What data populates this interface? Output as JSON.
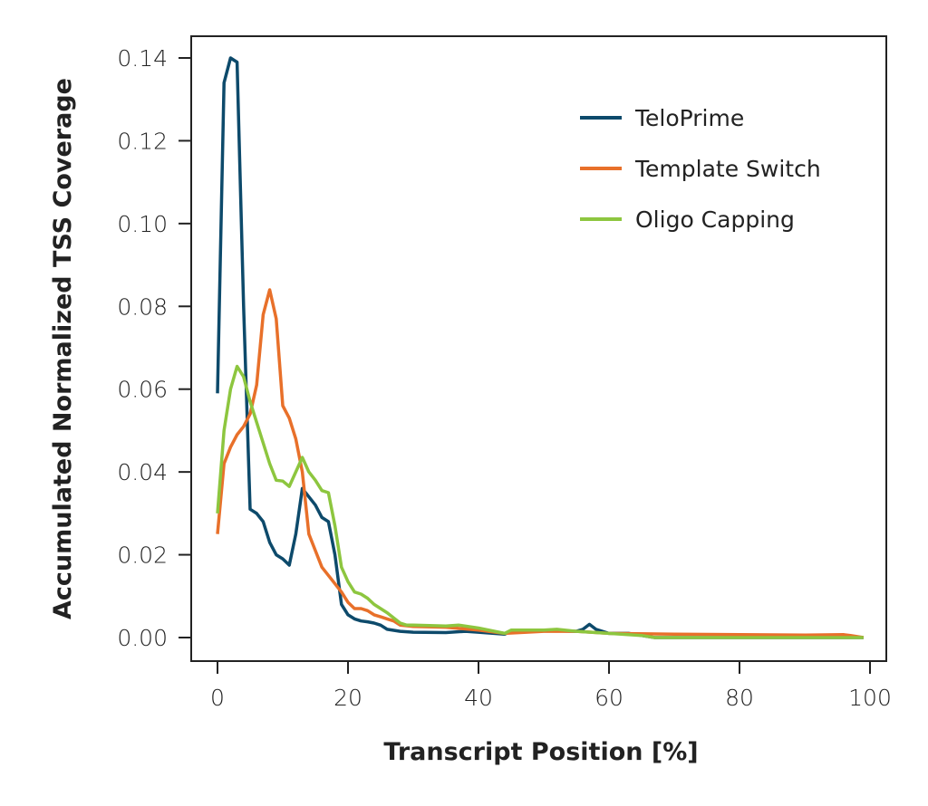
{
  "chart_data": {
    "type": "line",
    "title": "",
    "xlabel": "Transcript Position [%]",
    "ylabel": "Accumulated Normalized TSS Coverage",
    "xlim": [
      0,
      100
    ],
    "ylim": [
      0,
      0.14
    ],
    "xticks": [
      "0",
      "20",
      "40",
      "60",
      "80",
      "100"
    ],
    "yticks": [
      "0.00",
      "0.02",
      "0.04",
      "0.06",
      "0.08",
      "0.10",
      "0.12",
      "0.14"
    ],
    "grid": false,
    "legend_position": "top-right",
    "series": [
      {
        "name": "TeloPrime",
        "color": "#0d4a6b",
        "x": [
          0,
          1,
          2,
          3,
          4,
          5,
          6,
          7,
          8,
          9,
          10,
          11,
          12,
          13,
          14,
          15,
          16,
          17,
          18,
          19,
          20,
          21,
          22,
          23,
          24,
          25,
          26,
          28,
          30,
          35,
          38,
          40,
          44,
          45,
          50,
          55,
          56,
          57,
          58,
          60,
          63,
          67,
          99
        ],
        "y": [
          0.059,
          0.134,
          0.14,
          0.139,
          0.08,
          0.031,
          0.03,
          0.028,
          0.023,
          0.02,
          0.019,
          0.0175,
          0.025,
          0.036,
          0.034,
          0.032,
          0.029,
          0.028,
          0.02,
          0.008,
          0.0055,
          0.0045,
          0.004,
          0.0038,
          0.0035,
          0.003,
          0.002,
          0.0015,
          0.0013,
          0.0012,
          0.0015,
          0.0013,
          0.0008,
          0.0015,
          0.0017,
          0.0015,
          0.002,
          0.0032,
          0.002,
          0.001,
          0.001,
          0.0,
          0.0
        ]
      },
      {
        "name": "Template Switch",
        "color": "#e8702a",
        "x": [
          0,
          1,
          2,
          3,
          4,
          5,
          6,
          7,
          8,
          9,
          10,
          11,
          12,
          13,
          14,
          15,
          16,
          17,
          18,
          19,
          20,
          21,
          22,
          23,
          24,
          25,
          26,
          27,
          28,
          30,
          35,
          40,
          44,
          50,
          55,
          60,
          70,
          80,
          90,
          96,
          97,
          99
        ],
        "y": [
          0.025,
          0.042,
          0.046,
          0.049,
          0.051,
          0.054,
          0.061,
          0.078,
          0.084,
          0.077,
          0.056,
          0.053,
          0.048,
          0.04,
          0.025,
          0.021,
          0.017,
          0.015,
          0.013,
          0.011,
          0.0085,
          0.007,
          0.007,
          0.0065,
          0.0055,
          0.005,
          0.0045,
          0.004,
          0.003,
          0.0027,
          0.0025,
          0.0018,
          0.001,
          0.0015,
          0.0015,
          0.001,
          0.0008,
          0.0007,
          0.0006,
          0.0007,
          0.0005,
          0.0
        ]
      },
      {
        "name": "Oligo Capping",
        "color": "#8dc63f",
        "x": [
          0,
          1,
          2,
          3,
          4,
          5,
          6,
          7,
          8,
          9,
          10,
          11,
          12,
          13,
          14,
          15,
          16,
          17,
          18,
          19,
          20,
          21,
          22,
          23,
          24,
          26,
          28,
          29,
          30,
          35,
          37,
          40,
          44,
          45,
          50,
          52,
          55,
          60,
          65,
          67,
          99
        ],
        "y": [
          0.03,
          0.05,
          0.06,
          0.0655,
          0.063,
          0.057,
          0.052,
          0.047,
          0.042,
          0.038,
          0.0378,
          0.0365,
          0.04,
          0.0435,
          0.04,
          0.038,
          0.0355,
          0.035,
          0.027,
          0.017,
          0.0135,
          0.011,
          0.0105,
          0.0095,
          0.008,
          0.006,
          0.0035,
          0.003,
          0.003,
          0.0028,
          0.003,
          0.0023,
          0.001,
          0.0018,
          0.0018,
          0.002,
          0.0015,
          0.001,
          0.0005,
          0.0,
          0.0
        ]
      }
    ]
  }
}
